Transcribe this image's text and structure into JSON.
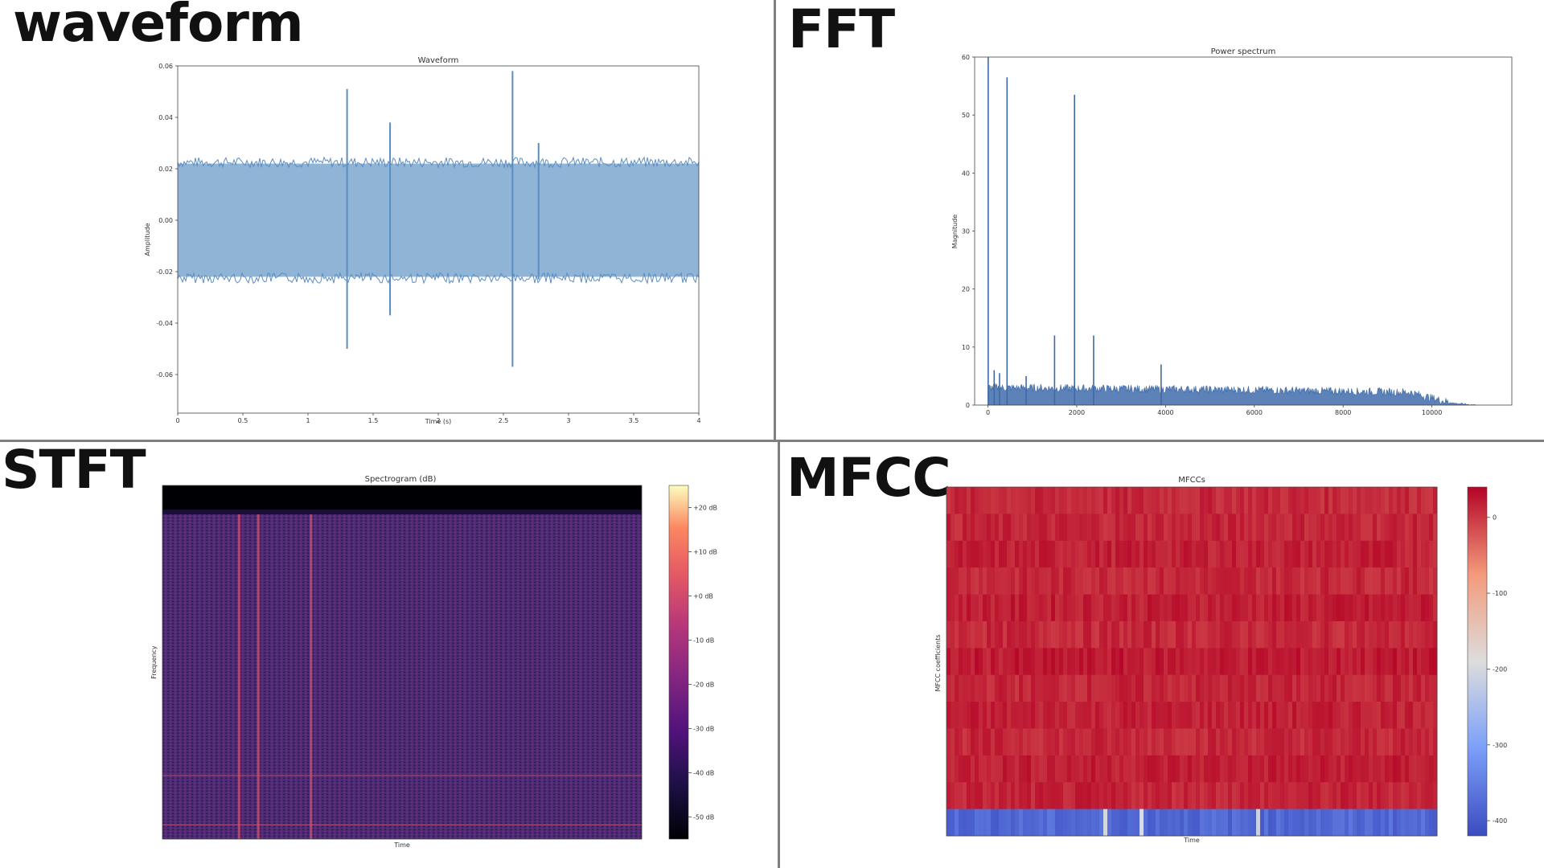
{
  "headings": {
    "waveform": "waveform",
    "fft": "FFT",
    "stft": "STFT",
    "mfcc": "MFCC"
  },
  "colors": {
    "waveform": "#8fb4d6",
    "waveform_dark": "#5b8dc0",
    "fft_line": "#3f69a6",
    "grid_divider": "#808080",
    "frame": "#444444"
  },
  "chart_data": [
    {
      "id": "waveform",
      "type": "area",
      "title": "Waveform",
      "xlabel": "Time (s)",
      "ylabel": "Amplitude",
      "xlim": [
        0,
        4
      ],
      "ylim": [
        -0.075,
        0.06
      ],
      "xticks": [
        "0",
        "0.5",
        "1",
        "1.5",
        "2",
        "2.5",
        "3",
        "3.5",
        "4"
      ],
      "yticks": [
        "-0.06",
        "-0.04",
        "-0.02",
        "0.00",
        "0.02",
        "0.04",
        "0.06"
      ],
      "envelope": [
        0.022,
        -0.022
      ],
      "spikes": [
        {
          "x": 1.3,
          "y": [
            -0.05,
            0.051
          ]
        },
        {
          "x": 1.63,
          "y": [
            -0.037,
            0.038
          ]
        },
        {
          "x": 2.57,
          "y": [
            -0.057,
            0.058
          ]
        },
        {
          "x": 2.77,
          "y": [
            -0.023,
            0.03
          ]
        }
      ]
    },
    {
      "id": "fft",
      "type": "line",
      "title": "Power spectrum",
      "xlabel": "",
      "ylabel": "Magnitude",
      "xlim": [
        -300,
        11800
      ],
      "ylim": [
        0,
        60
      ],
      "xticks": [
        "0",
        "2000",
        "4000",
        "6000",
        "8000",
        "10000"
      ],
      "yticks": [
        "0",
        "10",
        "20",
        "30",
        "40",
        "50",
        "60"
      ],
      "noise_floor": [
        [
          0,
          3
        ],
        [
          6000,
          2.6
        ],
        [
          9500,
          2.2
        ],
        [
          10000,
          1.2
        ],
        [
          10500,
          0.3
        ],
        [
          11000,
          0
        ]
      ],
      "peaks": [
        {
          "x": 5,
          "y": 60
        },
        {
          "x": 140,
          "y": 6
        },
        {
          "x": 260,
          "y": 5.5
        },
        {
          "x": 430,
          "y": 56.5
        },
        {
          "x": 860,
          "y": 5
        },
        {
          "x": 1500,
          "y": 12
        },
        {
          "x": 1950,
          "y": 53.5
        },
        {
          "x": 2380,
          "y": 12
        },
        {
          "x": 3900,
          "y": 7
        }
      ]
    },
    {
      "id": "stft",
      "type": "heatmap",
      "title": "Spectrogram (dB)",
      "xlabel": "Time",
      "ylabel": "Frequency",
      "colorbar": [
        "+20 dB",
        "+10 dB",
        "+0 dB",
        "-10 dB",
        "-20 dB",
        "-30 dB",
        "-40 dB",
        "-50 dB"
      ],
      "colorbar_range": [
        -55,
        25
      ],
      "background_level_db": -30,
      "top_band_db": -55,
      "vertical_events_time_fraction": [
        0.16,
        0.2,
        0.31
      ],
      "horizontal_lines_height_fraction": [
        0.18,
        0.04
      ]
    },
    {
      "id": "mfcc",
      "type": "heatmap",
      "title": "MFCCs",
      "xlabel": "Time",
      "ylabel": "MFCC coefficients",
      "colorbar": [
        "0",
        "-100",
        "-200",
        "-300",
        "-400"
      ],
      "colorbar_range": [
        -420,
        40
      ],
      "coefficient_count": 13,
      "coefficient_means": [
        12,
        14,
        18,
        13,
        20,
        12,
        22,
        14,
        18,
        13,
        20,
        15,
        -380
      ]
    }
  ]
}
